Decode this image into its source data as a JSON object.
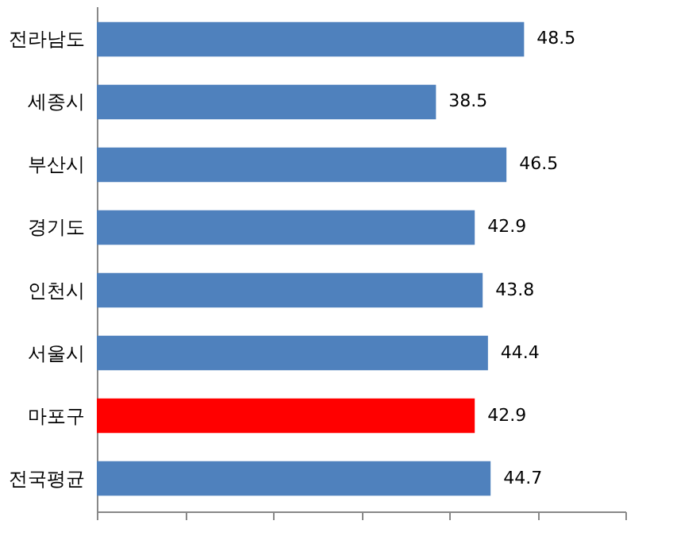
{
  "chart_data": {
    "type": "bar",
    "orientation": "horizontal",
    "categories": [
      "전라남도",
      "세종시",
      "부산시",
      "경기도",
      "인천시",
      "서울시",
      "마포구",
      "전국평균"
    ],
    "values": [
      48.5,
      38.5,
      46.5,
      42.9,
      43.8,
      44.4,
      42.9,
      44.7
    ],
    "colors": [
      "#4f81bd",
      "#4f81bd",
      "#4f81bd",
      "#4f81bd",
      "#4f81bd",
      "#4f81bd",
      "#ff0000",
      "#4f81bd"
    ],
    "xlim": [
      0,
      60
    ],
    "xticks": [
      {
        "value": 0,
        "label": null
      },
      {
        "value": 10,
        "label": null
      },
      {
        "value": 20,
        "label": null
      },
      {
        "value": 30,
        "label": null
      },
      {
        "value": 40,
        "label": null
      },
      {
        "value": 50,
        "label": null
      },
      {
        "value": 60,
        "label": null
      }
    ],
    "data_labels": true,
    "grid": false,
    "tick_labels": "y"
  }
}
